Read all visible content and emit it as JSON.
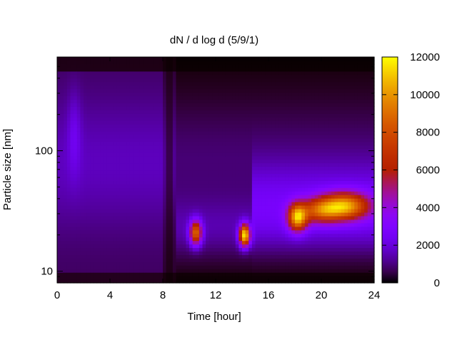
{
  "chart_data": {
    "type": "heatmap",
    "title": "dN / d log d (5/9/1)",
    "xlabel": "Time [hour]",
    "ylabel": "Particle size [nm]",
    "xlim": [
      0,
      24
    ],
    "ylim": [
      8,
      600
    ],
    "y_scale": "log",
    "x_ticks": [
      "0",
      "4",
      "8",
      "12",
      "16",
      "20",
      "24"
    ],
    "y_ticks": [
      "10",
      "100"
    ],
    "colorbar": {
      "range": [
        0,
        12000
      ],
      "ticks": [
        "0",
        "2000",
        "4000",
        "6000",
        "8000",
        "10000",
        "12000"
      ],
      "palette": "gnuplot",
      "colors": [
        "#000000",
        "#5500c8",
        "#9a00ff",
        "#c81e8c",
        "#e64b00",
        "#ff9600",
        "#ffff00"
      ]
    },
    "peaks": [
      {
        "time_hour": 1.3,
        "size_nm": 130,
        "value": 1800
      },
      {
        "time_hour": 10.5,
        "size_nm": 21,
        "value": 7500
      },
      {
        "time_hour": 14.2,
        "size_nm": 20,
        "value": 10500
      },
      {
        "time_hour": 18.2,
        "size_nm": 28,
        "value": 8200
      },
      {
        "time_hour": 21.8,
        "size_nm": 35,
        "value": 7800
      }
    ]
  }
}
